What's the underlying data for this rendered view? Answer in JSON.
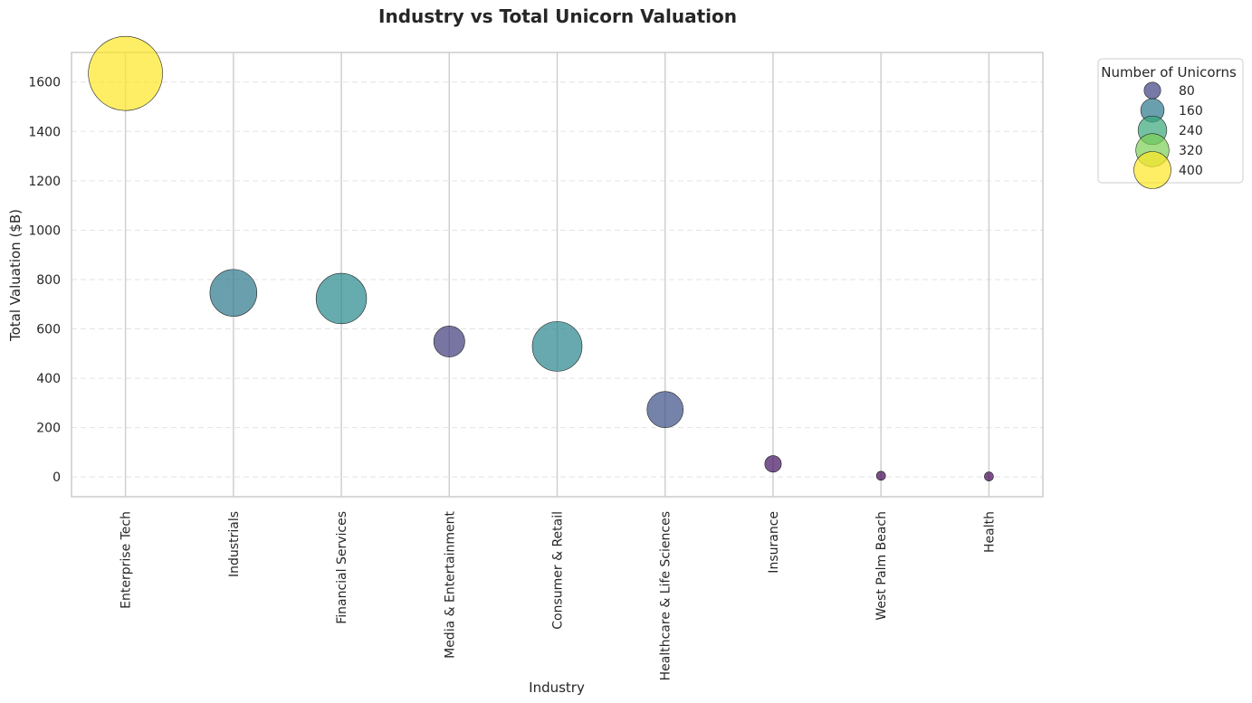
{
  "chart_data": {
    "type": "scatter",
    "title": "Industry vs Total Unicorn Valuation",
    "xlabel": "Industry",
    "ylabel": "Total Valuation ($B)",
    "ylim": [
      -80,
      1720
    ],
    "yticks": [
      0,
      200,
      400,
      600,
      800,
      1000,
      1200,
      1400,
      1600
    ],
    "grid": true,
    "categories": [
      "Enterprise Tech",
      "Industrials",
      "Financial Services",
      "Media & Entertainment",
      "Consumer & Retail",
      "Healthcare & Life Sciences",
      "Insurance",
      "West Palm Beach",
      "Health"
    ],
    "values": [
      1635,
      746,
      723,
      549,
      529,
      273,
      53,
      5,
      2
    ],
    "sizes": [
      400,
      160,
      185,
      70,
      180,
      95,
      20,
      6,
      6
    ],
    "colorscale": "viridis",
    "legend": {
      "title": "Number of Unicorns",
      "position": "upper-right-outside",
      "entries": [
        80,
        160,
        240,
        320,
        400
      ]
    }
  }
}
